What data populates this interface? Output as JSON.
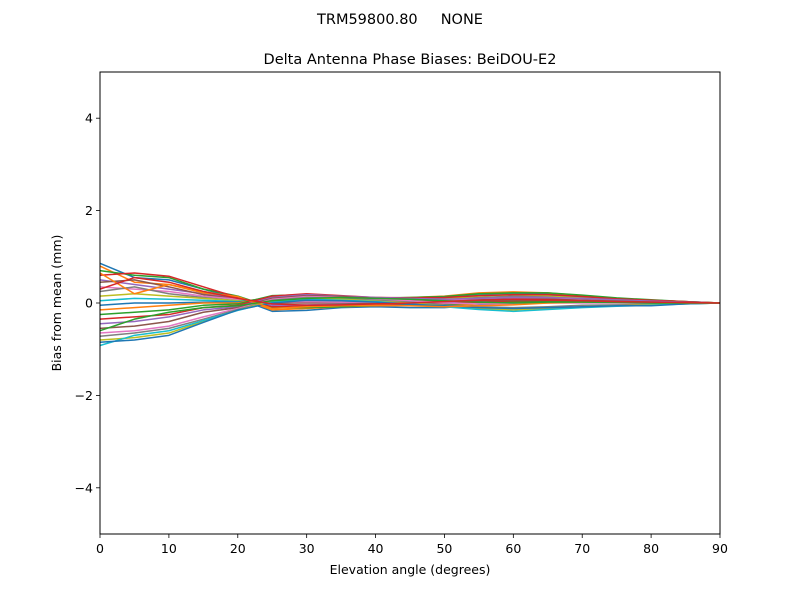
{
  "figure": {
    "suptitle": "TRM59800.80     NONE"
  },
  "chart_data": {
    "type": "line",
    "title": "Delta Antenna Phase Biases: BeiDOU-E2",
    "xlabel": "Elevation angle (degrees)",
    "ylabel": "Bias from mean (mm)",
    "xlim": [
      0,
      90
    ],
    "ylim": [
      -5,
      5
    ],
    "x": [
      0,
      5,
      10,
      15,
      20,
      25,
      30,
      35,
      40,
      45,
      50,
      55,
      60,
      65,
      70,
      75,
      80,
      85,
      90
    ],
    "xticks": [
      0,
      10,
      20,
      30,
      40,
      50,
      60,
      70,
      80,
      90
    ],
    "yticks": [
      -4,
      -2,
      0,
      2,
      4
    ],
    "ytick_labels": [
      "−4",
      "−2",
      "0",
      "2",
      "4"
    ],
    "grid": false,
    "legend": "none",
    "colors": [
      "#1f77b4",
      "#ff7f0e",
      "#2ca02c",
      "#d62728",
      "#9467bd",
      "#8c564b",
      "#e377c2",
      "#7f7f7f",
      "#bcbd22",
      "#17becf"
    ],
    "series": [
      {
        "values": [
          0.86,
          0.55,
          0.5,
          0.3,
          0.1,
          -0.18,
          -0.16,
          -0.1,
          -0.08,
          -0.1,
          -0.1,
          -0.05,
          0.0,
          0.05,
          0.05,
          0.03,
          0.02,
          0.01,
          0.0
        ]
      },
      {
        "values": [
          0.8,
          0.45,
          0.4,
          0.25,
          0.12,
          -0.15,
          -0.12,
          -0.08,
          -0.06,
          -0.05,
          -0.06,
          -0.02,
          0.02,
          0.04,
          0.04,
          0.03,
          0.02,
          0.01,
          0.0
        ]
      },
      {
        "values": [
          0.7,
          0.6,
          0.55,
          0.3,
          0.15,
          -0.1,
          -0.1,
          -0.08,
          -0.05,
          -0.04,
          -0.03,
          0.0,
          0.03,
          0.04,
          0.03,
          0.02,
          0.01,
          0.0,
          0.0
        ]
      },
      {
        "values": [
          0.6,
          0.65,
          0.58,
          0.35,
          0.12,
          -0.08,
          -0.06,
          -0.05,
          -0.04,
          -0.02,
          0.0,
          0.02,
          0.05,
          0.06,
          0.05,
          0.03,
          0.02,
          0.01,
          0.0
        ]
      },
      {
        "values": [
          0.5,
          0.4,
          0.3,
          0.2,
          0.1,
          -0.05,
          -0.04,
          -0.03,
          -0.02,
          0.0,
          0.02,
          0.05,
          0.08,
          0.08,
          0.06,
          0.04,
          0.02,
          0.01,
          0.0
        ]
      },
      {
        "values": [
          0.45,
          0.5,
          0.35,
          0.18,
          0.08,
          0.0,
          0.0,
          0.0,
          0.0,
          0.02,
          0.05,
          0.08,
          0.1,
          0.1,
          0.08,
          0.05,
          0.03,
          0.01,
          0.0
        ]
      },
      {
        "values": [
          0.35,
          0.3,
          0.25,
          0.15,
          0.08,
          0.02,
          0.03,
          0.02,
          0.02,
          0.04,
          0.06,
          0.1,
          0.12,
          0.12,
          0.09,
          0.06,
          0.03,
          0.02,
          0.0
        ]
      },
      {
        "values": [
          0.25,
          0.35,
          0.2,
          0.12,
          0.05,
          0.05,
          0.06,
          0.05,
          0.04,
          0.06,
          0.08,
          0.12,
          0.15,
          0.14,
          0.1,
          0.07,
          0.04,
          0.02,
          0.0
        ]
      },
      {
        "values": [
          0.15,
          0.2,
          0.15,
          0.1,
          0.05,
          0.08,
          0.08,
          0.07,
          0.06,
          0.08,
          0.1,
          0.15,
          0.18,
          0.16,
          0.12,
          0.08,
          0.05,
          0.02,
          0.0
        ]
      },
      {
        "values": [
          0.05,
          0.1,
          0.08,
          0.06,
          0.03,
          0.1,
          0.1,
          0.09,
          0.08,
          0.1,
          0.12,
          0.18,
          0.2,
          0.18,
          0.14,
          0.09,
          0.05,
          0.02,
          0.0
        ]
      },
      {
        "values": [
          -0.05,
          0.0,
          0.0,
          0.02,
          0.02,
          0.12,
          0.12,
          0.1,
          0.09,
          0.11,
          0.14,
          0.2,
          0.22,
          0.2,
          0.15,
          0.1,
          0.06,
          0.03,
          0.0
        ]
      },
      {
        "values": [
          -0.15,
          -0.1,
          -0.05,
          0.0,
          0.0,
          0.14,
          0.15,
          0.12,
          0.1,
          0.12,
          0.15,
          0.22,
          0.24,
          0.22,
          0.16,
          0.1,
          0.06,
          0.03,
          0.0
        ]
      },
      {
        "values": [
          -0.25,
          -0.2,
          -0.15,
          -0.05,
          -0.02,
          0.16,
          0.18,
          0.14,
          0.11,
          0.12,
          0.14,
          0.2,
          0.22,
          0.22,
          0.17,
          0.11,
          0.07,
          0.03,
          0.0
        ]
      },
      {
        "values": [
          -0.35,
          -0.3,
          -0.25,
          -0.1,
          -0.05,
          0.15,
          0.2,
          0.16,
          0.12,
          0.11,
          0.12,
          0.16,
          0.18,
          0.18,
          0.14,
          0.09,
          0.06,
          0.03,
          0.0
        ]
      },
      {
        "values": [
          -0.45,
          -0.4,
          -0.3,
          -0.15,
          -0.08,
          0.12,
          0.18,
          0.15,
          0.12,
          0.1,
          0.08,
          0.1,
          0.12,
          0.12,
          0.1,
          0.07,
          0.04,
          0.02,
          0.0
        ]
      },
      {
        "values": [
          -0.55,
          -0.5,
          -0.4,
          -0.2,
          -0.1,
          0.1,
          0.16,
          0.14,
          0.1,
          0.08,
          0.04,
          0.05,
          0.06,
          0.07,
          0.06,
          0.04,
          0.02,
          0.01,
          0.0
        ]
      },
      {
        "values": [
          -0.65,
          -0.6,
          -0.5,
          -0.3,
          -0.12,
          0.08,
          0.14,
          0.12,
          0.08,
          0.05,
          0.0,
          -0.02,
          -0.02,
          0.0,
          0.0,
          0.0,
          -0.01,
          -0.01,
          0.0
        ]
      },
      {
        "values": [
          -0.72,
          -0.65,
          -0.55,
          -0.35,
          -0.14,
          0.06,
          0.12,
          0.1,
          0.06,
          0.02,
          -0.04,
          -0.08,
          -0.1,
          -0.08,
          -0.05,
          -0.04,
          -0.03,
          -0.01,
          0.0
        ]
      },
      {
        "values": [
          -0.8,
          -0.75,
          -0.65,
          -0.4,
          -0.15,
          0.04,
          0.1,
          0.08,
          0.04,
          0.0,
          -0.06,
          -0.12,
          -0.15,
          -0.12,
          -0.08,
          -0.06,
          -0.04,
          -0.02,
          0.0
        ]
      },
      {
        "values": [
          -0.92,
          -0.7,
          -0.6,
          -0.38,
          -0.16,
          0.02,
          0.08,
          0.06,
          0.03,
          -0.02,
          -0.08,
          -0.14,
          -0.18,
          -0.14,
          -0.1,
          -0.07,
          -0.05,
          -0.02,
          0.0
        ]
      },
      {
        "values": [
          -0.85,
          -0.8,
          -0.7,
          -0.42,
          -0.15,
          0.0,
          0.06,
          0.05,
          0.02,
          -0.03,
          -0.06,
          -0.1,
          -0.12,
          -0.1,
          -0.08,
          -0.06,
          -0.06,
          -0.02,
          0.0
        ]
      },
      {
        "values": [
          0.65,
          0.2,
          0.4,
          0.22,
          0.14,
          -0.12,
          -0.08,
          -0.06,
          -0.05,
          -0.06,
          -0.08,
          -0.06,
          -0.04,
          0.0,
          0.02,
          0.02,
          0.01,
          0.0,
          0.0
        ]
      },
      {
        "values": [
          -0.6,
          -0.35,
          -0.2,
          -0.1,
          -0.06,
          0.05,
          0.1,
          0.12,
          0.1,
          0.08,
          0.05,
          0.02,
          0.0,
          0.02,
          0.02,
          0.01,
          0.0,
          0.0,
          0.0
        ]
      },
      {
        "values": [
          0.3,
          0.55,
          0.45,
          0.25,
          0.1,
          -0.02,
          -0.05,
          -0.04,
          -0.02,
          0.0,
          0.03,
          0.06,
          0.08,
          0.07,
          0.05,
          0.03,
          0.02,
          0.01,
          0.0
        ]
      }
    ]
  }
}
